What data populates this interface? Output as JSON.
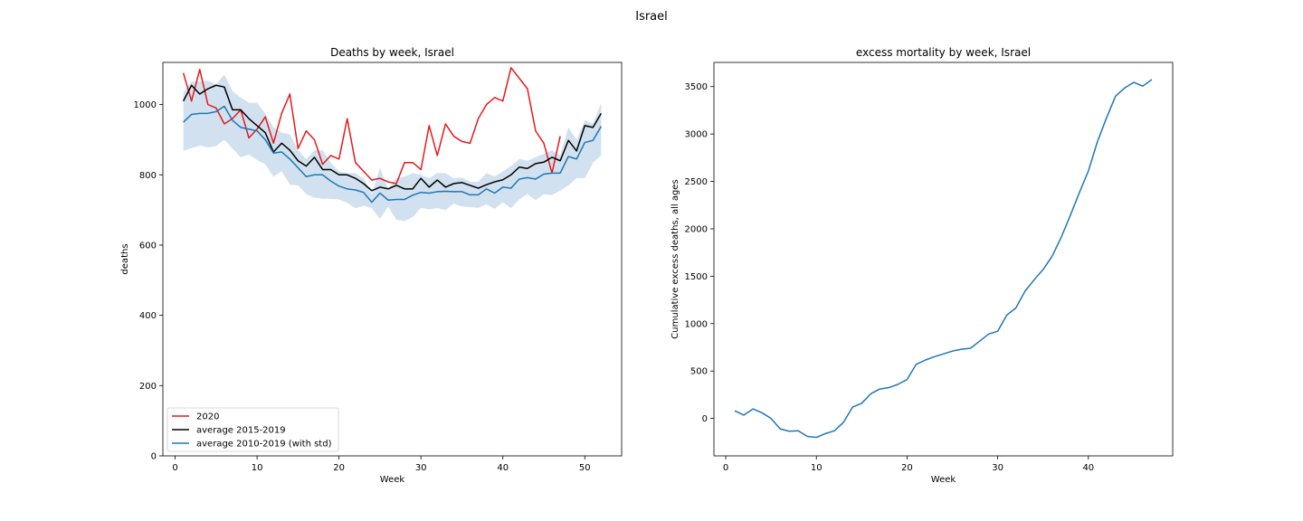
{
  "figure": {
    "suptitle": "Israel"
  },
  "chart_data": [
    {
      "type": "line",
      "title": "Deaths by week, Israel",
      "xlabel": "Week",
      "ylabel": "deaths",
      "xlim": [
        -1.5,
        54.5
      ],
      "ylim": [
        0,
        1120
      ],
      "xticks": [
        0,
        10,
        20,
        30,
        40,
        50
      ],
      "yticks": [
        0,
        200,
        400,
        600,
        800,
        1000
      ],
      "grid": false,
      "legend_position": "lower-left",
      "series": [
        {
          "name": "2020",
          "color": "#e41a1c",
          "x": [
            1,
            2,
            3,
            4,
            5,
            6,
            7,
            8,
            9,
            10,
            11,
            12,
            13,
            14,
            15,
            16,
            17,
            18,
            19,
            20,
            21,
            22,
            23,
            24,
            25,
            26,
            27,
            28,
            29,
            30,
            31,
            32,
            33,
            34,
            35,
            36,
            37,
            38,
            39,
            40,
            41,
            42,
            43,
            44,
            45,
            46,
            47
          ],
          "y": [
            1090,
            1010,
            1100,
            1000,
            990,
            945,
            960,
            985,
            905,
            930,
            965,
            890,
            975,
            1030,
            875,
            925,
            900,
            830,
            855,
            845,
            960,
            835,
            810,
            785,
            790,
            780,
            775,
            835,
            835,
            815,
            940,
            855,
            945,
            910,
            895,
            890,
            960,
            1000,
            1020,
            1010,
            1105,
            1075,
            1045,
            925,
            890,
            805,
            910
          ]
        },
        {
          "name": "average 2015-2019",
          "color": "#000000",
          "x": [
            1,
            2,
            3,
            4,
            5,
            6,
            7,
            8,
            9,
            10,
            11,
            12,
            13,
            14,
            15,
            16,
            17,
            18,
            19,
            20,
            21,
            22,
            23,
            24,
            25,
            26,
            27,
            28,
            29,
            30,
            31,
            32,
            33,
            34,
            35,
            36,
            37,
            38,
            39,
            40,
            41,
            42,
            43,
            44,
            45,
            46,
            47,
            48,
            49,
            50,
            51,
            52
          ],
          "y": [
            1010,
            1055,
            1030,
            1045,
            1055,
            1050,
            985,
            985,
            960,
            940,
            920,
            865,
            890,
            870,
            840,
            825,
            850,
            815,
            815,
            800,
            800,
            790,
            775,
            755,
            765,
            760,
            770,
            760,
            760,
            790,
            765,
            785,
            765,
            775,
            778,
            770,
            762,
            772,
            780,
            786,
            800,
            822,
            818,
            832,
            836,
            850,
            840,
            898,
            868,
            940,
            935,
            975
          ]
        },
        {
          "name": "average 2010-2019 (with std)",
          "color": "#1f77b4",
          "band_color": "#c9dcec",
          "x": [
            1,
            2,
            3,
            4,
            5,
            6,
            7,
            8,
            9,
            10,
            11,
            12,
            13,
            14,
            15,
            16,
            17,
            18,
            19,
            20,
            21,
            22,
            23,
            24,
            25,
            26,
            27,
            28,
            29,
            30,
            31,
            32,
            33,
            34,
            35,
            36,
            37,
            38,
            39,
            40,
            41,
            42,
            43,
            44,
            45,
            46,
            47,
            48,
            49,
            50,
            51,
            52
          ],
          "y": [
            950,
            972,
            975,
            975,
            980,
            995,
            955,
            935,
            930,
            925,
            900,
            862,
            865,
            845,
            820,
            795,
            800,
            800,
            782,
            768,
            760,
            757,
            750,
            722,
            748,
            728,
            730,
            730,
            742,
            750,
            748,
            752,
            753,
            752,
            752,
            743,
            743,
            760,
            748,
            765,
            762,
            788,
            792,
            788,
            802,
            805,
            805,
            852,
            845,
            892,
            898,
            938
          ],
          "lower": [
            868,
            876,
            883,
            878,
            882,
            900,
            875,
            850,
            858,
            842,
            830,
            795,
            810,
            772,
            770,
            745,
            735,
            732,
            732,
            730,
            720,
            705,
            712,
            705,
            675,
            710,
            672,
            668,
            680,
            706,
            702,
            705,
            700,
            718,
            710,
            708,
            706,
            716,
            703,
            722,
            705,
            730,
            745,
            728,
            745,
            742,
            755,
            770,
            790,
            790,
            835,
            855
          ],
          "upper": [
            1035,
            1065,
            1067,
            1068,
            1058,
            1086,
            1038,
            1020,
            1005,
            1005,
            975,
            935,
            920,
            915,
            870,
            845,
            870,
            870,
            835,
            810,
            805,
            805,
            790,
            745,
            820,
            760,
            790,
            795,
            805,
            800,
            790,
            805,
            805,
            790,
            792,
            780,
            780,
            805,
            795,
            810,
            825,
            845,
            840,
            850,
            860,
            870,
            855,
            935,
            900,
            955,
            945,
            1005
          ]
        }
      ]
    },
    {
      "type": "line",
      "title": "excess mortality by week, Israel",
      "xlabel": "Week",
      "ylabel": "Cumulative excess deaths, all ages",
      "xlim": [
        -1.3,
        49.3
      ],
      "ylim": [
        -395,
        3755
      ],
      "xticks": [
        0,
        10,
        20,
        30,
        40
      ],
      "yticks": [
        0,
        500,
        1000,
        1500,
        2000,
        2500,
        3000,
        3500
      ],
      "grid": false,
      "series": [
        {
          "color": "#1f77b4",
          "x": [
            1,
            2,
            3,
            4,
            5,
            6,
            7,
            8,
            9,
            10,
            11,
            12,
            13,
            14,
            15,
            16,
            17,
            18,
            19,
            20,
            21,
            22,
            23,
            24,
            25,
            26,
            27,
            28,
            29,
            30,
            31,
            32,
            33,
            34,
            35,
            36,
            37,
            38,
            39,
            40,
            41,
            42,
            43,
            44,
            45,
            46,
            47
          ],
          "y": [
            80,
            35,
            100,
            60,
            0,
            -110,
            -135,
            -130,
            -190,
            -200,
            -160,
            -130,
            -40,
            120,
            160,
            260,
            310,
            325,
            360,
            410,
            570,
            615,
            650,
            680,
            710,
            730,
            740,
            815,
            890,
            920,
            1090,
            1165,
            1340,
            1460,
            1570,
            1710,
            1910,
            2140,
            2380,
            2610,
            2920,
            3170,
            3400,
            3485,
            3545,
            3505,
            3575
          ]
        }
      ]
    }
  ]
}
